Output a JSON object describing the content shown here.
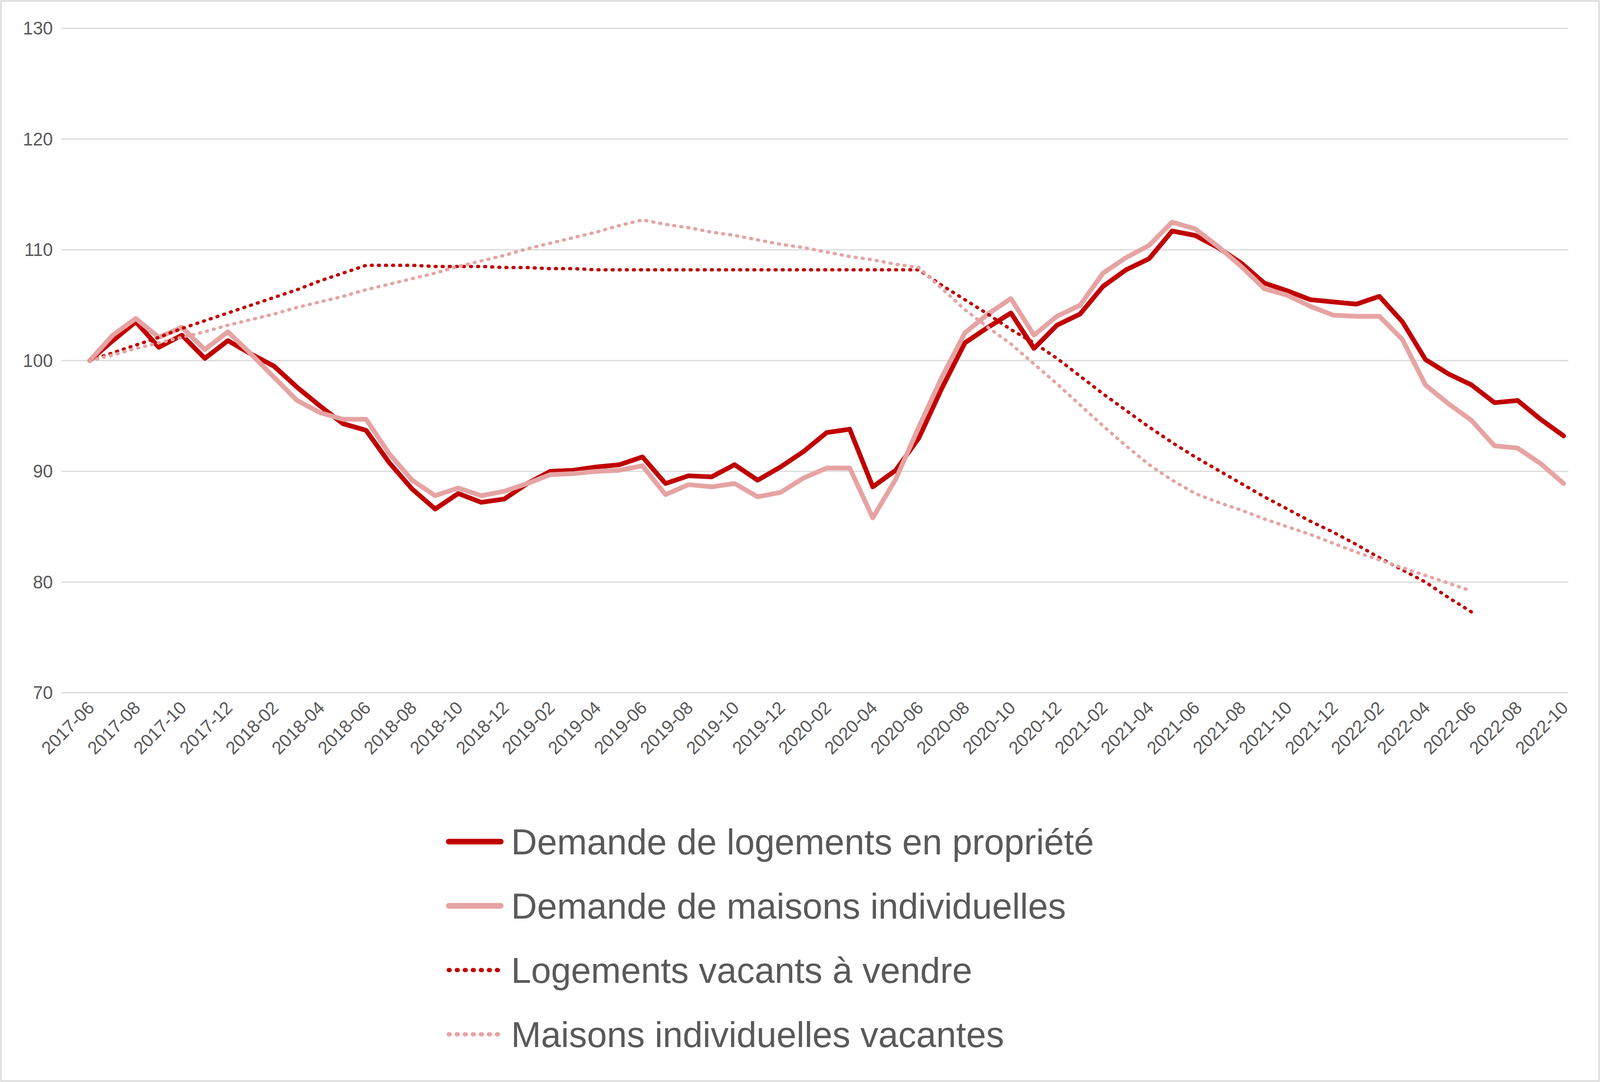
{
  "chart_data": {
    "type": "line",
    "categories": [
      "2017-06",
      null,
      "2017-08",
      null,
      "2017-10",
      null,
      "2017-12",
      null,
      "2018-02",
      null,
      "2018-04",
      null,
      "2018-06",
      null,
      "2018-08",
      null,
      "2018-10",
      null,
      "2018-12",
      null,
      "2019-02",
      null,
      "2019-04",
      null,
      "2019-06",
      null,
      "2019-08",
      null,
      "2019-10",
      null,
      "2019-12",
      null,
      "2020-02",
      null,
      "2020-04",
      null,
      "2020-06",
      null,
      "2020-08",
      null,
      "2020-10",
      null,
      "2020-12",
      null,
      "2021-02",
      null,
      "2021-04",
      null,
      "2021-06",
      null,
      "2021-08",
      null,
      "2021-10",
      null,
      "2021-12",
      null,
      "2022-02",
      null,
      "2022-04",
      null,
      "2022-06",
      null,
      "2022-08",
      null,
      "2022-10"
    ],
    "series": [
      {
        "name": "Demande de logements en propriété",
        "color": "#c00000",
        "line_style": "solid",
        "values": [
          100,
          101.8,
          103.5,
          101.2,
          102.3,
          100.2,
          101.8,
          100.6,
          99.5,
          97.6,
          95.9,
          94.3,
          93.7,
          90.8,
          88.4,
          86.6,
          88.0,
          87.2,
          87.5,
          88.9,
          90.0,
          90.1,
          90.4,
          90.6,
          91.3,
          88.9,
          89.6,
          89.5,
          90.6,
          89.2,
          90.4,
          91.8,
          93.5,
          93.8,
          88.6,
          90.1,
          93.0,
          97.5,
          101.6,
          103.0,
          104.3,
          101.1,
          103.2,
          104.2,
          106.7,
          108.2,
          109.2,
          111.7,
          111.3,
          110.2,
          108.8,
          107.0,
          106.3,
          105.5,
          105.3,
          105.1,
          105.8,
          103.5,
          100.1,
          98.8,
          97.8,
          96.2,
          96.4,
          94.7,
          93.2
        ]
      },
      {
        "name": "Demande de maisons individuelles",
        "color": "#e6a3a3",
        "line_style": "solid",
        "values": [
          100,
          102.3,
          103.8,
          102.1,
          103.0,
          101.0,
          102.6,
          100.6,
          98.5,
          96.4,
          95.3,
          94.7,
          94.7,
          91.6,
          89.2,
          87.8,
          88.5,
          87.8,
          88.2,
          88.9,
          89.7,
          89.8,
          90.0,
          90.1,
          90.5,
          87.9,
          88.8,
          88.6,
          88.9,
          87.7,
          88.1,
          89.4,
          90.3,
          90.3,
          85.8,
          89.3,
          94.0,
          98.5,
          102.5,
          104.2,
          105.6,
          102.3,
          104.0,
          105.0,
          107.9,
          109.3,
          110.4,
          112.5,
          111.9,
          110.3,
          108.5,
          106.5,
          105.9,
          104.9,
          104.1,
          104.0,
          104.0,
          101.9,
          97.8,
          96.1,
          94.6,
          92.3,
          92.1,
          90.7,
          88.9
        ]
      },
      {
        "name": "Logements vacants à vendre",
        "color": "#c00000",
        "line_style": "dotted",
        "values": [
          100,
          100.7,
          101.4,
          102.1,
          102.9,
          103.6,
          104.3,
          105.0,
          105.7,
          106.4,
          107.2,
          107.9,
          108.6,
          108.6,
          108.6,
          108.5,
          108.5,
          108.5,
          108.4,
          108.4,
          108.3,
          108.3,
          108.2,
          108.2,
          108.2,
          108.2,
          108.2,
          108.2,
          108.2,
          108.2,
          108.2,
          108.2,
          108.2,
          108.2,
          108.2,
          108.2,
          108.2,
          106.8,
          105.5,
          104.2,
          102.8,
          101.6,
          100.2,
          98.6,
          97.0,
          95.5,
          94.0,
          92.6,
          91.3,
          90.1,
          88.9,
          87.7,
          86.6,
          85.5,
          84.5,
          83.4,
          82.2,
          81.1,
          80.0,
          78.6,
          77.3,
          null,
          null,
          null,
          null
        ]
      },
      {
        "name": "Maisons individuelles vacantes",
        "color": "#e6a3a3",
        "line_style": "dotted",
        "values": [
          100,
          100.5,
          101.1,
          101.6,
          102.1,
          102.6,
          103.2,
          103.7,
          104.2,
          104.8,
          105.3,
          105.8,
          106.4,
          106.9,
          107.4,
          107.9,
          108.5,
          109.0,
          109.5,
          110.1,
          110.6,
          111.1,
          111.6,
          112.2,
          112.7,
          112.3,
          112.0,
          111.6,
          111.3,
          110.9,
          110.5,
          110.2,
          109.8,
          109.4,
          109.1,
          108.7,
          108.4,
          106.5,
          104.6,
          103.0,
          101.5,
          99.7,
          97.9,
          96.0,
          94.1,
          92.3,
          90.6,
          89.2,
          88.0,
          87.2,
          86.5,
          85.7,
          85.0,
          84.3,
          83.5,
          82.7,
          82.0,
          81.3,
          80.6,
          79.9,
          79.2,
          null,
          null,
          null,
          null
        ]
      }
    ],
    "ylim": [
      70,
      130
    ],
    "yticks": [
      70,
      80,
      90,
      100,
      110,
      120,
      130
    ],
    "grid": true,
    "legend": "bottom"
  }
}
